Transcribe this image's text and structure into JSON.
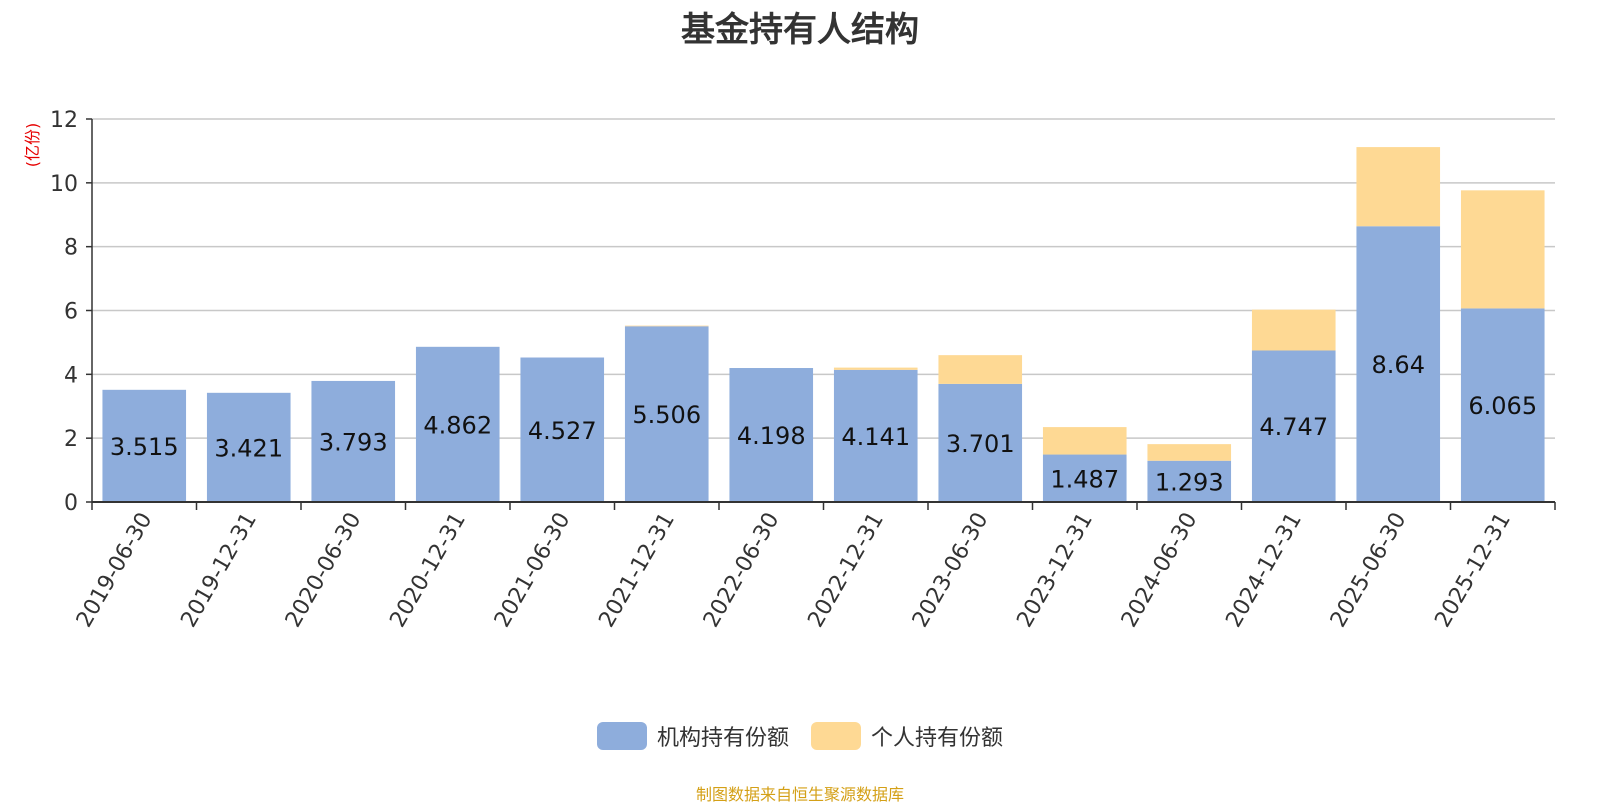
{
  "chart_data": {
    "type": "bar",
    "stacked": true,
    "title": "基金持有人结构",
    "ylabel": "(亿份)",
    "ylim": [
      0,
      12
    ],
    "yticks": [
      0,
      2,
      4,
      6,
      8,
      10,
      12
    ],
    "grid": true,
    "legend_position": "bottom",
    "categories": [
      "2019-06-30",
      "2019-12-31",
      "2020-06-30",
      "2020-12-31",
      "2021-06-30",
      "2021-12-31",
      "2022-06-30",
      "2022-12-31",
      "2023-06-30",
      "2023-12-31",
      "2024-06-30",
      "2024-12-31",
      "2025-06-30",
      "2025-12-31"
    ],
    "series": [
      {
        "name": "机构持有份额",
        "color": "#8eaddc",
        "values": [
          3.515,
          3.421,
          3.793,
          4.862,
          4.527,
          5.506,
          4.198,
          4.141,
          3.701,
          1.487,
          1.293,
          4.747,
          8.64,
          6.065
        ]
      },
      {
        "name": "个人持有份额",
        "color": "#fed994",
        "values": [
          0.0,
          0.0,
          0.0,
          0.0,
          0.0,
          0.02,
          0.0,
          0.07,
          0.9,
          0.86,
          0.52,
          1.28,
          2.48,
          3.7
        ]
      }
    ],
    "data_labels_series": 0
  },
  "source_note": "制图数据来自恒生聚源数据库"
}
